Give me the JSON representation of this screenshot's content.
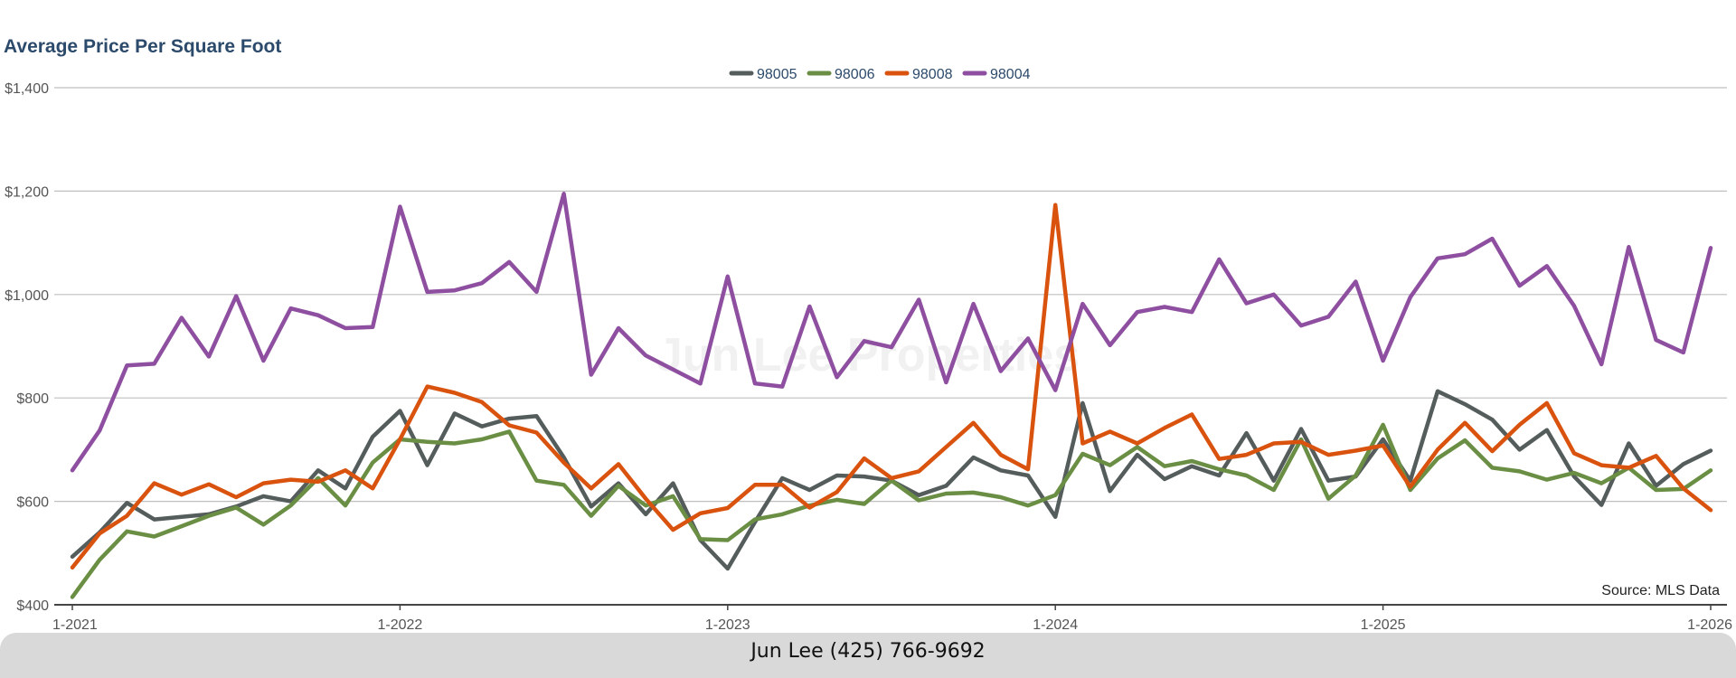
{
  "chart_data": {
    "type": "line",
    "title": "Average Price Per Square Foot",
    "xlabel": "",
    "ylabel": "",
    "ylim": [
      400,
      1400
    ],
    "y_ticks": [
      "$400",
      "$600",
      "$800",
      "$1,000",
      "$1,200",
      "$1,400"
    ],
    "y_tick_values": [
      400,
      600,
      800,
      1000,
      1200,
      1400
    ],
    "x_tick_labels": [
      "1-2021",
      "1-2022",
      "1-2023",
      "1-2024",
      "1-2025",
      "1-2026"
    ],
    "x_tick_index": [
      0,
      12,
      24,
      36,
      48,
      60
    ],
    "x": [
      "1-2021",
      "2-2021",
      "3-2021",
      "4-2021",
      "5-2021",
      "6-2021",
      "7-2021",
      "8-2021",
      "9-2021",
      "10-2021",
      "11-2021",
      "12-2021",
      "1-2022",
      "2-2022",
      "3-2022",
      "4-2022",
      "5-2022",
      "6-2022",
      "7-2022",
      "8-2022",
      "9-2022",
      "10-2022",
      "11-2022",
      "12-2022",
      "1-2023",
      "2-2023",
      "3-2023",
      "4-2023",
      "5-2023",
      "6-2023",
      "7-2023",
      "8-2023",
      "9-2023",
      "10-2023",
      "11-2023",
      "12-2023",
      "1-2024",
      "2-2024",
      "3-2024",
      "4-2024",
      "5-2024",
      "6-2024",
      "7-2024",
      "8-2024",
      "9-2024",
      "10-2024",
      "11-2024",
      "12-2024",
      "1-2025",
      "2-2025",
      "3-2025",
      "4-2025",
      "5-2025",
      "6-2025",
      "7-2025",
      "8-2025",
      "9-2025",
      "10-2025",
      "11-2025",
      "12-2025",
      "1-2026"
    ],
    "grid": true,
    "legend_position": "top-center",
    "series": [
      {
        "name": "98005",
        "color": "#555d5c",
        "values": [
          493,
          540,
          597,
          565,
          570,
          575,
          590,
          610,
          600,
          660,
          625,
          725,
          775,
          670,
          770,
          745,
          760,
          765,
          685,
          590,
          635,
          575,
          635,
          525,
          470,
          560,
          645,
          622,
          650,
          648,
          640,
          612,
          630,
          685,
          660,
          650,
          570,
          790,
          620,
          690,
          643,
          668,
          650,
          732,
          640,
          740,
          640,
          648,
          720,
          640,
          813,
          788,
          758,
          700,
          738,
          648,
          593,
          712,
          630,
          672,
          698
        ]
      },
      {
        "name": "98006",
        "color": "#6a8f44",
        "values": [
          415,
          487,
          542,
          532,
          552,
          572,
          588,
          555,
          592,
          645,
          592,
          675,
          720,
          715,
          712,
          720,
          735,
          640,
          632,
          572,
          630,
          592,
          610,
          527,
          525,
          565,
          575,
          592,
          603,
          595,
          640,
          602,
          615,
          617,
          608,
          592,
          612,
          692,
          670,
          705,
          668,
          678,
          662,
          650,
          622,
          720,
          605,
          650,
          748,
          622,
          683,
          718,
          665,
          658,
          642,
          655,
          635,
          665,
          622,
          624,
          660
        ]
      },
      {
        "name": "98008",
        "color": "#d9530f",
        "values": [
          472,
          538,
          572,
          635,
          613,
          633,
          608,
          635,
          642,
          638,
          660,
          625,
          720,
          822,
          810,
          792,
          747,
          733,
          675,
          625,
          672,
          605,
          545,
          577,
          587,
          632,
          632,
          588,
          618,
          683,
          645,
          658,
          705,
          752,
          690,
          662,
          1173,
          712,
          735,
          712,
          742,
          768,
          682,
          690,
          712,
          715,
          690,
          698,
          708,
          628,
          700,
          752,
          697,
          748,
          790,
          693,
          670,
          665,
          688,
          625,
          583
        ]
      },
      {
        "name": "98004",
        "color": "#8e4fa0",
        "values": [
          660,
          737,
          863,
          866,
          955,
          880,
          997,
          872,
          973,
          960,
          935,
          937,
          1170,
          1005,
          1008,
          1022,
          1063,
          1005,
          1195,
          845,
          935,
          882,
          855,
          828,
          1035,
          828,
          822,
          977,
          840,
          910,
          898,
          990,
          830,
          982,
          852,
          915,
          815,
          982,
          902,
          966,
          976,
          966,
          1068,
          983,
          1000,
          940,
          957,
          1025,
          872,
          995,
          1070,
          1078,
          1108,
          1017,
          1055,
          978,
          865,
          1092,
          912,
          888,
          1090
        ]
      }
    ],
    "annotations": [
      "Source: MLS Data"
    ],
    "watermark": "Jun Lee Properties"
  },
  "footer": {
    "contact": "Jun Lee (425) 766-9692"
  }
}
